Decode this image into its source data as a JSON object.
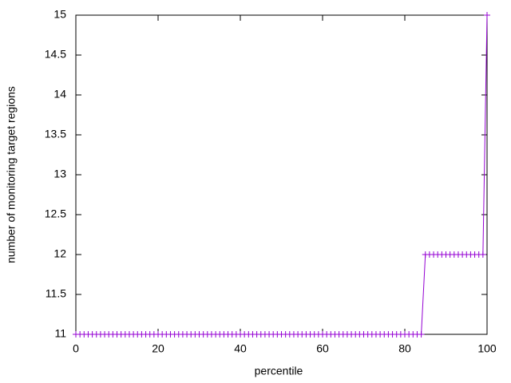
{
  "chart_data": {
    "type": "line",
    "xlabel": "percentile",
    "ylabel": "number of monitoring target regions",
    "x": [
      0,
      1,
      2,
      3,
      4,
      5,
      6,
      7,
      8,
      9,
      10,
      11,
      12,
      13,
      14,
      15,
      16,
      17,
      18,
      19,
      20,
      21,
      22,
      23,
      24,
      25,
      26,
      27,
      28,
      29,
      30,
      31,
      32,
      33,
      34,
      35,
      36,
      37,
      38,
      39,
      40,
      41,
      42,
      43,
      44,
      45,
      46,
      47,
      48,
      49,
      50,
      51,
      52,
      53,
      54,
      55,
      56,
      57,
      58,
      59,
      60,
      61,
      62,
      63,
      64,
      65,
      66,
      67,
      68,
      69,
      70,
      71,
      72,
      73,
      74,
      75,
      76,
      77,
      78,
      79,
      80,
      81,
      82,
      83,
      84,
      85,
      86,
      87,
      88,
      89,
      90,
      91,
      92,
      93,
      94,
      95,
      96,
      97,
      98,
      99,
      100
    ],
    "series": [
      {
        "color": "#9400d3",
        "values": [
          11,
          11,
          11,
          11,
          11,
          11,
          11,
          11,
          11,
          11,
          11,
          11,
          11,
          11,
          11,
          11,
          11,
          11,
          11,
          11,
          11,
          11,
          11,
          11,
          11,
          11,
          11,
          11,
          11,
          11,
          11,
          11,
          11,
          11,
          11,
          11,
          11,
          11,
          11,
          11,
          11,
          11,
          11,
          11,
          11,
          11,
          11,
          11,
          11,
          11,
          11,
          11,
          11,
          11,
          11,
          11,
          11,
          11,
          11,
          11,
          11,
          11,
          11,
          11,
          11,
          11,
          11,
          11,
          11,
          11,
          11,
          11,
          11,
          11,
          11,
          11,
          11,
          11,
          11,
          11,
          11,
          11,
          11,
          11,
          11,
          12,
          12,
          12,
          12,
          12,
          12,
          12,
          12,
          12,
          12,
          12,
          12,
          12,
          12,
          12,
          15
        ]
      }
    ],
    "xlim": [
      0,
      100
    ],
    "xticks": [
      0,
      20,
      40,
      60,
      80,
      100
    ],
    "ylim": [
      11,
      15
    ],
    "yticks": [
      11,
      11.5,
      12,
      12.5,
      13,
      13.5,
      14,
      14.5,
      15
    ]
  }
}
